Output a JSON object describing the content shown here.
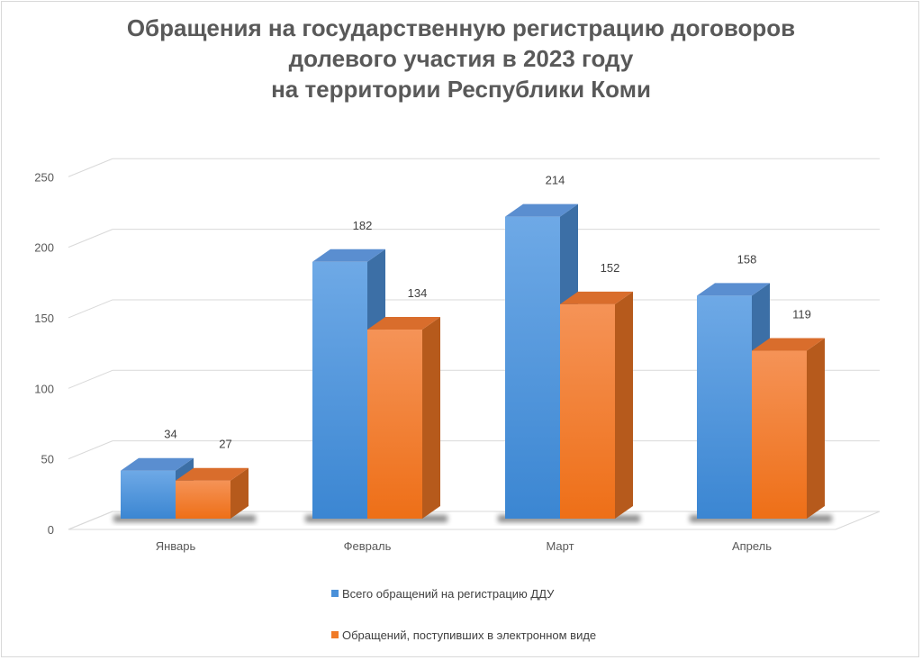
{
  "chart_data": {
    "type": "bar",
    "title": "Обращения на государственную регистрацию договоров долевого участия в 2023 году на территории Республики Коми",
    "title_lines": [
      "Обращения на государственную регистрацию договоров",
      "долевого участия в 2023 году",
      "на территории Республики Коми"
    ],
    "categories": [
      "Январь",
      "Февраль",
      "Март",
      "Апрель"
    ],
    "series": [
      {
        "name": "Всего обращений на регистрацию ДДУ",
        "values": [
          34,
          182,
          214,
          158
        ],
        "color": "#4a90d9"
      },
      {
        "name": "Обращений, поступивших в электронном виде",
        "values": [
          27,
          134,
          152,
          119
        ],
        "color": "#f07a27"
      }
    ],
    "yticks": [
      0,
      50,
      100,
      150,
      200,
      250
    ],
    "ylim": [
      0,
      250
    ],
    "xlabel": "",
    "ylabel": "",
    "grid": true,
    "style": "3d-column",
    "legend_position": "bottom"
  }
}
